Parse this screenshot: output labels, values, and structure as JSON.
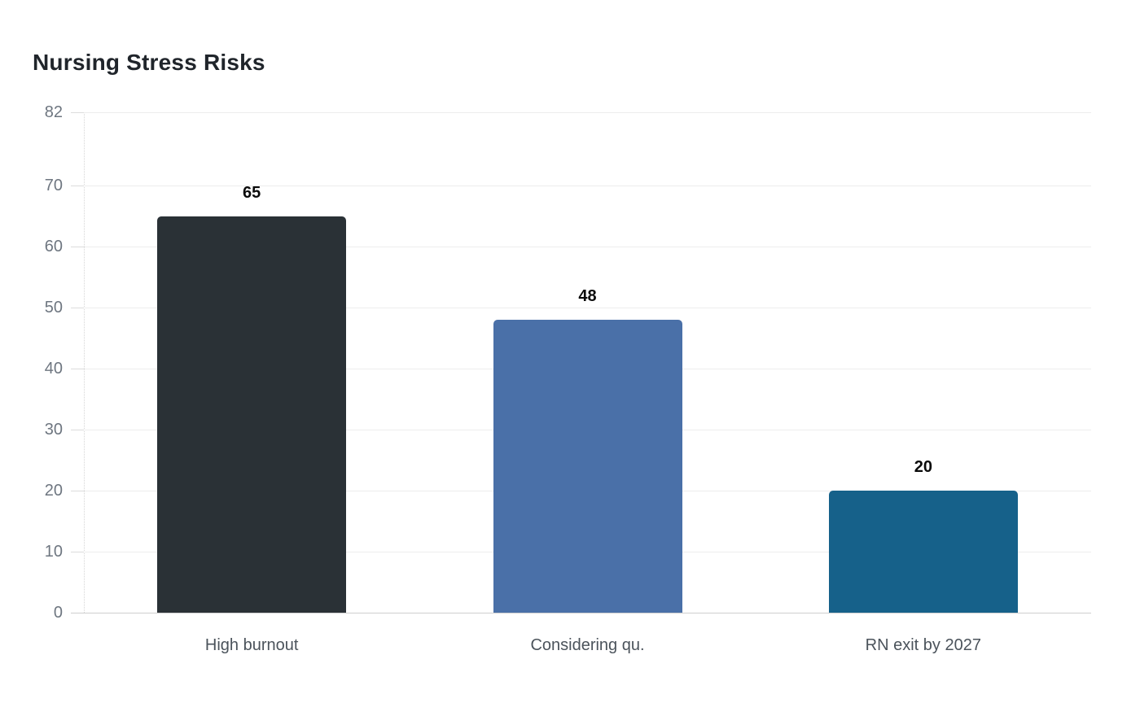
{
  "page_title": "Nursing Stress Risks",
  "chart_data": {
    "type": "bar",
    "title": "Nursing Stress Risks",
    "categories": [
      "High burnout",
      "Considering qu.",
      "RN exit by 2027"
    ],
    "values": [
      65,
      48,
      20
    ],
    "series": [
      {
        "name": "Nursing Stress Risks",
        "values": [
          65,
          48,
          20
        ]
      }
    ],
    "bar_colors": [
      "#2a3136",
      "#4a70a8",
      "#16618a"
    ],
    "xlabel": "",
    "ylabel": "",
    "ylim": [
      0,
      82
    ],
    "yticks": [
      0,
      10,
      20,
      30,
      40,
      50,
      60,
      70,
      82
    ],
    "grid": true,
    "legend_position": "none",
    "background": "#ffffff"
  }
}
